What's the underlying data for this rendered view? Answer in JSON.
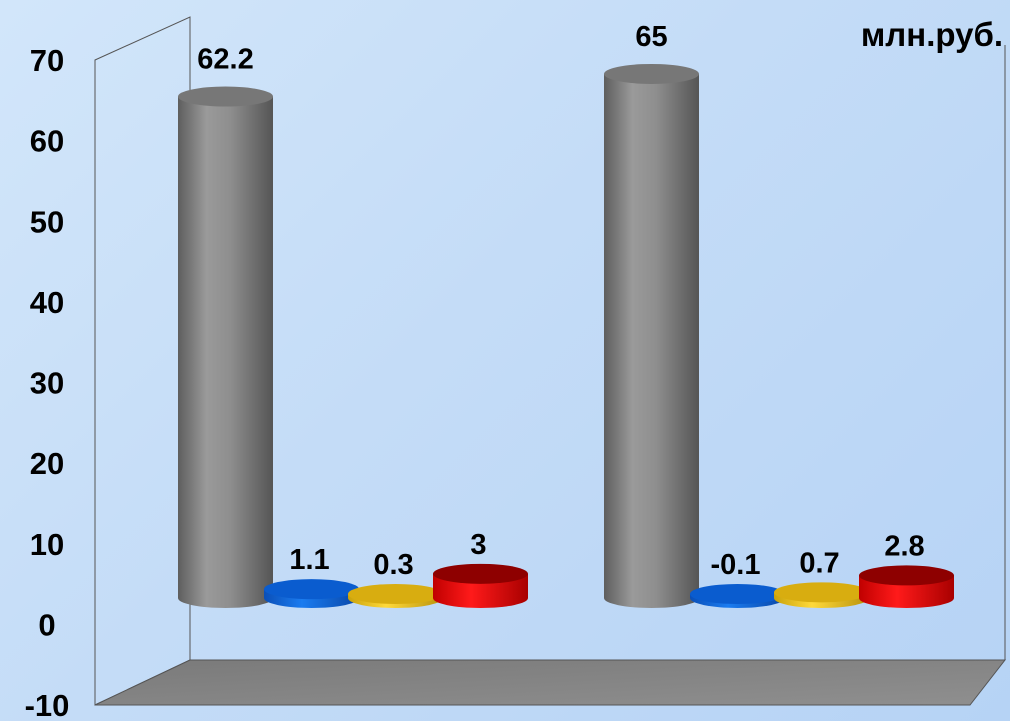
{
  "chart_data": {
    "type": "bar",
    "style": "3d-cylinder",
    "unit_label": "млн.руб.",
    "ylim": [
      -10,
      70
    ],
    "y_ticks": [
      -10,
      0,
      10,
      20,
      30,
      40,
      50,
      60,
      70
    ],
    "grid": false,
    "legend": "none",
    "groups": [
      {
        "bars": [
          {
            "value": 62.2,
            "label": "62.2",
            "color": "#8c8c8c"
          },
          {
            "value": 1.1,
            "label": "1.1",
            "color": "#0a5fd6"
          },
          {
            "value": 0.3,
            "label": "0.3",
            "color": "#e0b814"
          },
          {
            "value": 3,
            "label": "3",
            "color": "#e00a0a"
          }
        ]
      },
      {
        "bars": [
          {
            "value": 65,
            "label": "65",
            "color": "#8c8c8c"
          },
          {
            "value": -0.1,
            "label": "-0.1",
            "color": "#0a5fd6"
          },
          {
            "value": 0.7,
            "label": "0.7",
            "color": "#e0b814"
          },
          {
            "value": 2.8,
            "label": "2.8",
            "color": "#e00a0a"
          }
        ]
      }
    ]
  }
}
